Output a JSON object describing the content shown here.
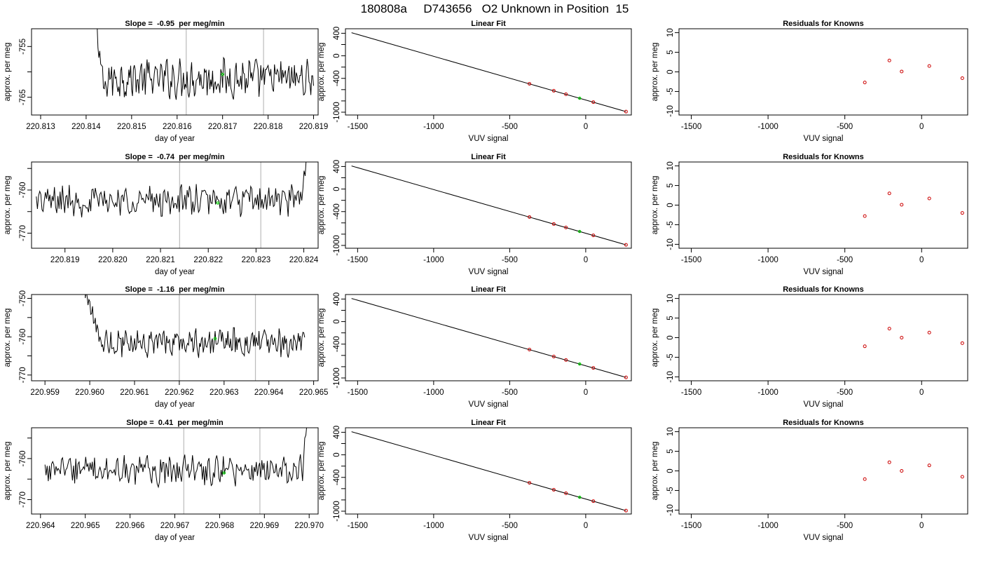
{
  "figure_title": "180808a     D743656   O2 Unknown in Position  15",
  "colors": {
    "line": "#000000",
    "marker_known": "#cc0000",
    "marker_unknown": "#00cc00",
    "vline": "#bbbbbb",
    "axis": "#000000"
  },
  "chart_data": [
    {
      "type": "line",
      "row": 1,
      "col": 1,
      "title": "Slope =  -0.95  per meg/min",
      "xlabel": "day of year",
      "ylabel": "approx. per meg",
      "xlim": [
        220.8128,
        220.8191
      ],
      "ylim": [
        -768.5,
        -751.5
      ],
      "xticks": [
        220.813,
        220.814,
        220.815,
        220.816,
        220.817,
        220.818,
        220.819
      ],
      "xtick_labels": [
        "220.813",
        "220.814",
        "220.815",
        "220.816",
        "220.817",
        "220.818",
        "220.819"
      ],
      "yticks": [
        -765,
        -755
      ],
      "ytick_labels": [
        "-765",
        "-755"
      ],
      "yminor": [
        -760
      ],
      "vlines": [
        220.8162,
        220.8179
      ],
      "series_start": 220.8142,
      "series_end": 220.819,
      "start_y": -750,
      "mean": -761.3,
      "amp": 3.2,
      "transient": [
        -750,
        -756,
        -759,
        -763
      ],
      "marker": {
        "x": 220.817,
        "y": -760.5
      }
    },
    {
      "type": "scatter",
      "row": 1,
      "col": 2,
      "title": "Linear Fit",
      "xlabel": "VUV signal",
      "ylabel": "approx. per meg",
      "xlim": [
        -1580,
        300
      ],
      "ylim": [
        -1050,
        480
      ],
      "xticks": [
        -1500,
        -1000,
        -500,
        0
      ],
      "xtick_labels": [
        "-1500",
        "-1000",
        "-500",
        "0"
      ],
      "yticks": [
        400,
        0,
        -400,
        -1000
      ],
      "ytick_labels": [
        "400",
        "0",
        "-400",
        "-1000"
      ],
      "yminor": [
        200,
        -200,
        -600,
        -800
      ],
      "fit_line": {
        "x1": -1540,
        "y1": 410,
        "x2": 265,
        "y2": -990
      },
      "known_points": [
        {
          "x": -370,
          "y": -496
        },
        {
          "x": -210,
          "y": -620
        },
        {
          "x": -130,
          "y": -682
        },
        {
          "x": 50,
          "y": -822
        },
        {
          "x": 265,
          "y": -990
        }
      ],
      "unknown_points": [
        {
          "x": -40,
          "y": -752
        }
      ]
    },
    {
      "type": "scatter",
      "row": 1,
      "col": 3,
      "title": "Residuals for Knowns",
      "xlabel": "VUV signal",
      "ylabel": "approx. per meg",
      "xlim": [
        -1580,
        300
      ],
      "ylim": [
        -11,
        11
      ],
      "xticks": [
        -1500,
        -1000,
        -500,
        0
      ],
      "xtick_labels": [
        "-1500",
        "-1000",
        "-500",
        "0"
      ],
      "yticks": [
        10,
        5,
        0,
        -5,
        -10
      ],
      "ytick_labels": [
        "10",
        "5",
        "0",
        "-5",
        "-10"
      ],
      "known_points": [
        {
          "x": -370,
          "y": -2.7
        },
        {
          "x": -210,
          "y": 2.9
        },
        {
          "x": -130,
          "y": 0.1
        },
        {
          "x": 50,
          "y": 1.5
        },
        {
          "x": 265,
          "y": -1.6
        }
      ]
    },
    {
      "type": "line",
      "row": 2,
      "col": 1,
      "title": "Slope =  -0.74  per meg/min",
      "xlabel": "day of year",
      "ylabel": "approx. per meg",
      "xlim": [
        220.8183,
        220.8243
      ],
      "ylim": [
        -773.5,
        -753.5
      ],
      "xticks": [
        220.819,
        220.82,
        220.821,
        220.822,
        220.823,
        220.824
      ],
      "xtick_labels": [
        "220.819",
        "220.820",
        "220.821",
        "220.822",
        "220.823",
        "220.824"
      ],
      "yticks": [
        -770,
        -760
      ],
      "ytick_labels": [
        "-770",
        "-760"
      ],
      "yminor": [
        -765,
        -755
      ],
      "vlines": [
        220.8214,
        220.8231
      ],
      "series_start": 220.8184,
      "series_end": 220.8241,
      "mean": -762.5,
      "amp": 3.0,
      "tail": [
        -760,
        -756,
        -752
      ],
      "marker": {
        "x": 220.8222,
        "y": -763
      }
    },
    {
      "type": "scatter",
      "row": 2,
      "col": 2,
      "title": "Linear Fit",
      "xlabel": "VUV signal",
      "ylabel": "approx. per meg",
      "xlim": [
        -1580,
        300
      ],
      "ylim": [
        -1050,
        480
      ],
      "xticks": [
        -1500,
        -1000,
        -500,
        0
      ],
      "xtick_labels": [
        "-1500",
        "-1000",
        "-500",
        "0"
      ],
      "yticks": [
        400,
        0,
        -400,
        -1000
      ],
      "ytick_labels": [
        "400",
        "0",
        "-400",
        "-1000"
      ],
      "yminor": [
        200,
        -200,
        -600,
        -800
      ],
      "fit_line": {
        "x1": -1540,
        "y1": 410,
        "x2": 265,
        "y2": -990
      },
      "known_points": [
        {
          "x": -370,
          "y": -496
        },
        {
          "x": -210,
          "y": -620
        },
        {
          "x": -130,
          "y": -682
        },
        {
          "x": 50,
          "y": -822
        },
        {
          "x": 265,
          "y": -990
        }
      ],
      "unknown_points": [
        {
          "x": -40,
          "y": -752
        }
      ]
    },
    {
      "type": "scatter",
      "row": 2,
      "col": 3,
      "title": "Residuals for Knowns",
      "xlabel": "VUV signal",
      "ylabel": "approx. per meg",
      "xlim": [
        -1580,
        300
      ],
      "ylim": [
        -11,
        11
      ],
      "xticks": [
        -1500,
        -1000,
        -500,
        0
      ],
      "xtick_labels": [
        "-1500",
        "-1000",
        "-500",
        "0"
      ],
      "yticks": [
        10,
        5,
        0,
        -5,
        -10
      ],
      "ytick_labels": [
        "10",
        "5",
        "0",
        "-5",
        "-10"
      ],
      "known_points": [
        {
          "x": -370,
          "y": -2.8
        },
        {
          "x": -210,
          "y": 3.0
        },
        {
          "x": -130,
          "y": 0.1
        },
        {
          "x": 50,
          "y": 1.7
        },
        {
          "x": 265,
          "y": -2.0
        }
      ]
    },
    {
      "type": "line",
      "row": 3,
      "col": 1,
      "title": "Slope =  -1.16  per meg/min",
      "xlabel": "day of year",
      "ylabel": "approx. per meg",
      "xlim": [
        220.9587,
        220.9651
      ],
      "ylim": [
        -771.5,
        -749.0
      ],
      "xticks": [
        220.959,
        220.96,
        220.961,
        220.962,
        220.963,
        220.964,
        220.965
      ],
      "xtick_labels": [
        "220.959",
        "220.960",
        "220.961",
        "220.962",
        "220.963",
        "220.964",
        "220.965"
      ],
      "yticks": [
        -770,
        -760,
        -750
      ],
      "ytick_labels": [
        "-770",
        "-760",
        "-750"
      ],
      "yminor": [
        -765,
        -755
      ],
      "vlines": [
        220.962,
        220.9637
      ],
      "series_start": 220.9599,
      "series_end": 220.9648,
      "start_y": -749,
      "mean": -761.5,
      "amp": 3.0,
      "transient": [
        -749,
        -751,
        -753,
        -756,
        -758
      ],
      "marker": {
        "x": 220.9628,
        "y": -760.5
      }
    },
    {
      "type": "scatter",
      "row": 3,
      "col": 2,
      "title": "Linear Fit",
      "xlabel": "VUV signal",
      "ylabel": "approx. per meg",
      "xlim": [
        -1580,
        300
      ],
      "ylim": [
        -1050,
        480
      ],
      "xticks": [
        -1500,
        -1000,
        -500,
        0
      ],
      "xtick_labels": [
        "-1500",
        "-1000",
        "-500",
        "0"
      ],
      "yticks": [
        400,
        0,
        -400,
        -1000
      ],
      "ytick_labels": [
        "400",
        "0",
        "-400",
        "-1000"
      ],
      "yminor": [
        200,
        -200,
        -600,
        -800
      ],
      "fit_line": {
        "x1": -1540,
        "y1": 410,
        "x2": 265,
        "y2": -990
      },
      "known_points": [
        {
          "x": -370,
          "y": -496
        },
        {
          "x": -210,
          "y": -620
        },
        {
          "x": -130,
          "y": -682
        },
        {
          "x": 50,
          "y": -822
        },
        {
          "x": 265,
          "y": -990
        }
      ],
      "unknown_points": [
        {
          "x": -40,
          "y": -752
        }
      ]
    },
    {
      "type": "scatter",
      "row": 3,
      "col": 3,
      "title": "Residuals for Knowns",
      "xlabel": "VUV signal",
      "ylabel": "approx. per meg",
      "xlim": [
        -1580,
        300
      ],
      "ylim": [
        -11,
        11
      ],
      "xticks": [
        -1500,
        -1000,
        -500,
        0
      ],
      "xtick_labels": [
        "-1500",
        "-1000",
        "-500",
        "0"
      ],
      "yticks": [
        10,
        5,
        0,
        -5,
        -10
      ],
      "ytick_labels": [
        "10",
        "5",
        "0",
        "-5",
        "-10"
      ],
      "known_points": [
        {
          "x": -370,
          "y": -2.2
        },
        {
          "x": -210,
          "y": 2.3
        },
        {
          "x": -130,
          "y": 0.0
        },
        {
          "x": 50,
          "y": 1.3
        },
        {
          "x": 265,
          "y": -1.4
        }
      ]
    },
    {
      "type": "line",
      "row": 4,
      "col": 1,
      "title": "Slope =  0.41  per meg/min",
      "xlabel": "day of year",
      "ylabel": "approx. per meg",
      "xlim": [
        220.9638,
        220.9702
      ],
      "ylim": [
        -773.5,
        -752.5
      ],
      "xticks": [
        220.964,
        220.965,
        220.966,
        220.967,
        220.968,
        220.969,
        220.97
      ],
      "xtick_labels": [
        "220.964",
        "220.965",
        "220.966",
        "220.967",
        "220.968",
        "220.969",
        "220.970"
      ],
      "yticks": [
        -770,
        -760
      ],
      "ytick_labels": [
        "-770",
        "-760"
      ],
      "yminor": [
        -765,
        -755
      ],
      "vlines": [
        220.9672,
        220.9689
      ],
      "series_start": 220.9641,
      "series_end": 220.97,
      "mean": -763.0,
      "amp": 3.0,
      "tail": [
        -760,
        -755,
        -751
      ],
      "marker": {
        "x": 220.9681,
        "y": -763.5
      }
    },
    {
      "type": "scatter",
      "row": 4,
      "col": 2,
      "title": "Linear Fit",
      "xlabel": "VUV signal",
      "ylabel": "approx. per meg",
      "xlim": [
        -1580,
        300
      ],
      "ylim": [
        -1050,
        480
      ],
      "xticks": [
        -1500,
        -1000,
        -500,
        0
      ],
      "xtick_labels": [
        "-1500",
        "-1000",
        "-500",
        "0"
      ],
      "yticks": [
        400,
        0,
        -400,
        -1000
      ],
      "ytick_labels": [
        "400",
        "0",
        "-400",
        "-1000"
      ],
      "yminor": [
        200,
        -200,
        -600,
        -800
      ],
      "fit_line": {
        "x1": -1540,
        "y1": 410,
        "x2": 265,
        "y2": -990
      },
      "known_points": [
        {
          "x": -370,
          "y": -496
        },
        {
          "x": -210,
          "y": -620
        },
        {
          "x": -130,
          "y": -682
        },
        {
          "x": 50,
          "y": -822
        },
        {
          "x": 265,
          "y": -990
        }
      ],
      "unknown_points": [
        {
          "x": -40,
          "y": -752
        }
      ]
    },
    {
      "type": "scatter",
      "row": 4,
      "col": 3,
      "title": "Residuals for Knowns",
      "xlabel": "VUV signal",
      "ylabel": "approx. per meg",
      "xlim": [
        -1580,
        300
      ],
      "ylim": [
        -11,
        11
      ],
      "xticks": [
        -1500,
        -1000,
        -500,
        0
      ],
      "xtick_labels": [
        "-1500",
        "-1000",
        "-500",
        "0"
      ],
      "yticks": [
        10,
        5,
        0,
        -5,
        -10
      ],
      "ytick_labels": [
        "10",
        "5",
        "0",
        "-5",
        "-10"
      ],
      "known_points": [
        {
          "x": -370,
          "y": -2.1
        },
        {
          "x": -210,
          "y": 2.2
        },
        {
          "x": -130,
          "y": 0.0
        },
        {
          "x": 50,
          "y": 1.4
        },
        {
          "x": 265,
          "y": -1.5
        }
      ]
    }
  ]
}
